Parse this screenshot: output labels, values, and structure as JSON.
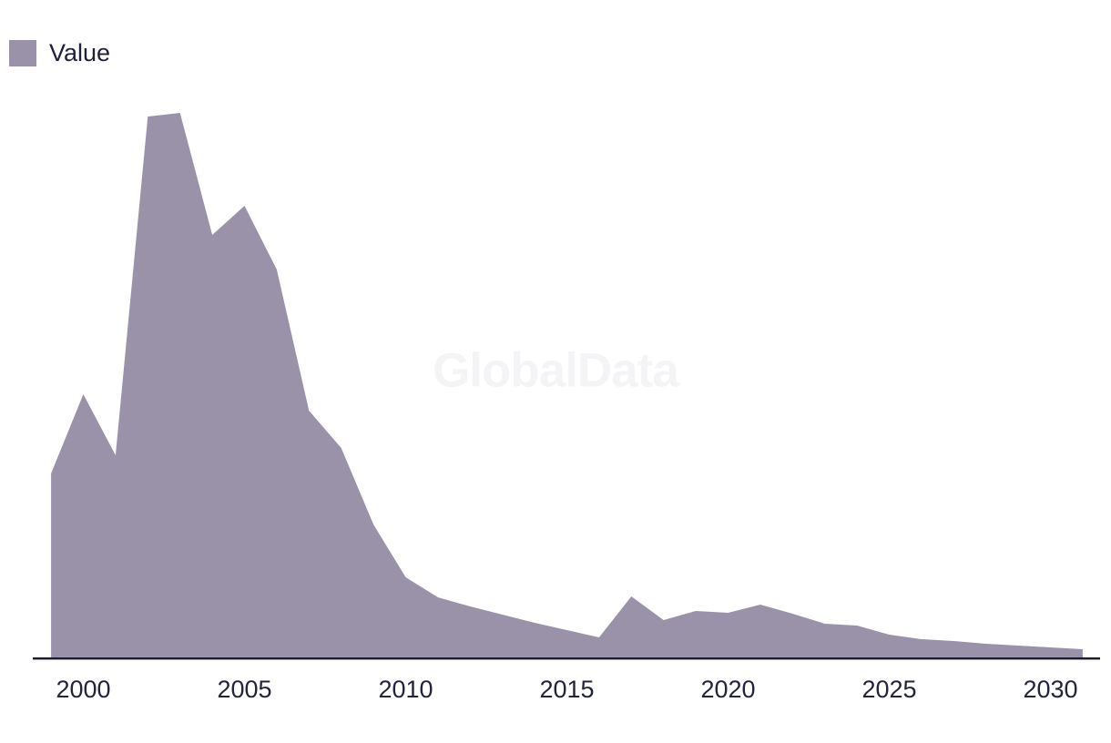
{
  "legend": {
    "label": "Value",
    "swatch_color": "#9992a8"
  },
  "watermark": "GlobalData",
  "colors": {
    "background": "#ffffff",
    "area_fill": "#9992a8",
    "axis_line": "#1a1a32",
    "tick_text": "#23233d",
    "watermark": "#f4f4f6"
  },
  "chart_data": {
    "type": "area",
    "title": "",
    "xlabel": "",
    "ylabel": "",
    "grid": false,
    "y_axis_visible": false,
    "legend_position": "top-left",
    "series_name": "Value",
    "x": [
      1999,
      2000,
      2001,
      2002,
      2003,
      2004,
      2005,
      2006,
      2007,
      2008,
      2009,
      2010,
      2011,
      2012,
      2013,
      2014,
      2015,
      2016,
      2017,
      2018,
      2019,
      2020,
      2021,
      2022,
      2023,
      2024,
      2025,
      2026,
      2027,
      2028,
      2029,
      2030,
      2031
    ],
    "series": [
      {
        "name": "Value",
        "values": [
          202,
          289,
          222,
          594,
          598,
          464,
          496,
          426,
          271,
          230,
          146,
          88,
          66,
          56,
          47,
          38,
          30,
          22,
          67,
          41,
          51,
          49,
          58,
          48,
          37,
          35,
          25,
          20,
          18,
          15,
          13,
          11,
          9
        ]
      }
    ],
    "xticks": [
      "2000",
      "2005",
      "2010",
      "2015",
      "2020",
      "2025",
      "2030"
    ],
    "xlim": [
      1999,
      2031
    ],
    "ylim": [
      0,
      620
    ]
  }
}
